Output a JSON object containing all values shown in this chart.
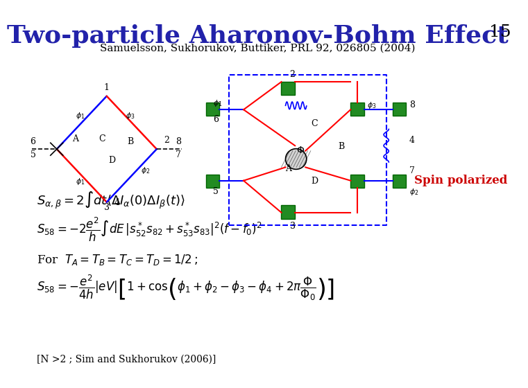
{
  "title": "Two-particle Aharonov-Bohm Effect",
  "title_color": "#2222AA",
  "slide_number": "15",
  "subtitle": "Samuelsson, Sukhorukov, Buttiker, PRL 92, 026805 (2004)",
  "spin_polarized_text": "Spin polarized",
  "spin_polarized_color": "#CC0000",
  "footnote": "[N >2 ; Sim and Sukhorukov (2006)]",
  "bg_color": "#FFFFFF"
}
